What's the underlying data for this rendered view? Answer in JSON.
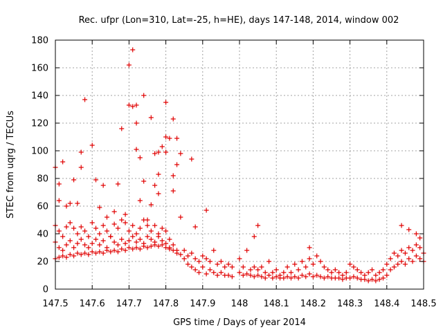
{
  "chart_data": {
    "type": "scatter",
    "title": "Rec. ufpr (Lon=310, Lat=-25, h=HE), days 147-148, 2014, window 002",
    "xlabel": "GPS time / Days of year 2014",
    "ylabel": "STEC from uqrg / TECUs",
    "xlim": [
      147.5,
      148.5
    ],
    "ylim": [
      0,
      180
    ],
    "xticks": [
      147.5,
      147.6,
      147.7,
      147.8,
      147.9,
      148,
      148.1,
      148.2,
      148.3,
      148.4,
      148.5
    ],
    "xtick_labels": [
      "147.5",
      "147.6",
      "147.7",
      "147.8",
      "147.9",
      "148",
      "148.1",
      "148.2",
      "148.3",
      "148.4",
      "148.5"
    ],
    "yticks": [
      0,
      20,
      40,
      60,
      80,
      100,
      120,
      140,
      160,
      180
    ],
    "ytick_labels": [
      "0",
      "20",
      "40",
      "60",
      "80",
      "100",
      "120",
      "140",
      "160",
      "180"
    ],
    "grid": true,
    "marker": "plus",
    "color": "#e00000",
    "series": [
      {
        "name": "",
        "points": [
          [
            147.5,
            88
          ],
          [
            147.51,
            76
          ],
          [
            147.51,
            64
          ],
          [
            147.52,
            92
          ],
          [
            147.53,
            60
          ],
          [
            147.54,
            62
          ],
          [
            147.55,
            79
          ],
          [
            147.56,
            62
          ],
          [
            147.57,
            99
          ],
          [
            147.57,
            88
          ],
          [
            147.58,
            137
          ],
          [
            147.6,
            104
          ],
          [
            147.61,
            79
          ],
          [
            147.62,
            59
          ],
          [
            147.63,
            75
          ],
          [
            147.64,
            52
          ],
          [
            147.66,
            56
          ],
          [
            147.67,
            76
          ],
          [
            147.68,
            116
          ],
          [
            147.69,
            54
          ],
          [
            147.7,
            162
          ],
          [
            147.7,
            133
          ],
          [
            147.71,
            173
          ],
          [
            147.71,
            132
          ],
          [
            147.72,
            133
          ],
          [
            147.72,
            120
          ],
          [
            147.72,
            101
          ],
          [
            147.73,
            95
          ],
          [
            147.73,
            64
          ],
          [
            147.74,
            140
          ],
          [
            147.74,
            78
          ],
          [
            147.75,
            50
          ],
          [
            147.76,
            124
          ],
          [
            147.76,
            61
          ],
          [
            147.77,
            98
          ],
          [
            147.77,
            75
          ],
          [
            147.78,
            99
          ],
          [
            147.78,
            83
          ],
          [
            147.78,
            69
          ],
          [
            147.79,
            103
          ],
          [
            147.8,
            135
          ],
          [
            147.8,
            110
          ],
          [
            147.8,
            99
          ],
          [
            147.81,
            109
          ],
          [
            147.82,
            123
          ],
          [
            147.82,
            82
          ],
          [
            147.82,
            71
          ],
          [
            147.83,
            90
          ],
          [
            147.83,
            109
          ],
          [
            147.84,
            98
          ],
          [
            147.84,
            52
          ],
          [
            147.87,
            94
          ],
          [
            147.88,
            45
          ],
          [
            147.91,
            57
          ],
          [
            148.05,
            46
          ],
          [
            148.04,
            38
          ],
          [
            148.19,
            30
          ],
          [
            148.44,
            46
          ],
          [
            148.46,
            43
          ],
          [
            148.48,
            40
          ],
          [
            148.49,
            37
          ],
          [
            147.5,
            46
          ],
          [
            147.51,
            42
          ],
          [
            147.52,
            38
          ],
          [
            147.53,
            45
          ],
          [
            147.54,
            48
          ],
          [
            147.55,
            44
          ],
          [
            147.56,
            40
          ],
          [
            147.57,
            45
          ],
          [
            147.58,
            42
          ],
          [
            147.59,
            38
          ],
          [
            147.6,
            48
          ],
          [
            147.61,
            44
          ],
          [
            147.62,
            40
          ],
          [
            147.63,
            46
          ],
          [
            147.64,
            42
          ],
          [
            147.65,
            38
          ],
          [
            147.66,
            47
          ],
          [
            147.67,
            44
          ],
          [
            147.68,
            50
          ],
          [
            147.69,
            48
          ],
          [
            147.7,
            42
          ],
          [
            147.71,
            46
          ],
          [
            147.72,
            40
          ],
          [
            147.73,
            44
          ],
          [
            147.74,
            50
          ],
          [
            147.75,
            46
          ],
          [
            147.76,
            42
          ],
          [
            147.77,
            46
          ],
          [
            147.78,
            40
          ],
          [
            147.79,
            44
          ],
          [
            147.8,
            42
          ],
          [
            147.81,
            36
          ],
          [
            147.5,
            34
          ],
          [
            147.51,
            30
          ],
          [
            147.52,
            28
          ],
          [
            147.53,
            32
          ],
          [
            147.54,
            35
          ],
          [
            147.55,
            30
          ],
          [
            147.56,
            33
          ],
          [
            147.57,
            36
          ],
          [
            147.58,
            32
          ],
          [
            147.59,
            30
          ],
          [
            147.6,
            33
          ],
          [
            147.61,
            36
          ],
          [
            147.62,
            32
          ],
          [
            147.63,
            35
          ],
          [
            147.64,
            30
          ],
          [
            147.65,
            38
          ],
          [
            147.66,
            34
          ],
          [
            147.67,
            32
          ],
          [
            147.68,
            36
          ],
          [
            147.69,
            33
          ],
          [
            147.7,
            35
          ],
          [
            147.71,
            38
          ],
          [
            147.72,
            34
          ],
          [
            147.73,
            36
          ],
          [
            147.74,
            33
          ],
          [
            147.75,
            38
          ],
          [
            147.76,
            36
          ],
          [
            147.77,
            34
          ],
          [
            147.78,
            38
          ],
          [
            147.79,
            35
          ],
          [
            147.8,
            33
          ],
          [
            147.81,
            30
          ],
          [
            147.82,
            32
          ],
          [
            147.83,
            28
          ],
          [
            147.5,
            22
          ],
          [
            147.51,
            23
          ],
          [
            147.52,
            24
          ],
          [
            147.53,
            23
          ],
          [
            147.54,
            25
          ],
          [
            147.55,
            24
          ],
          [
            147.56,
            26
          ],
          [
            147.57,
            25
          ],
          [
            147.58,
            26
          ],
          [
            147.59,
            25
          ],
          [
            147.6,
            27
          ],
          [
            147.61,
            26
          ],
          [
            147.62,
            27
          ],
          [
            147.63,
            26
          ],
          [
            147.64,
            28
          ],
          [
            147.65,
            27
          ],
          [
            147.66,
            28
          ],
          [
            147.67,
            27
          ],
          [
            147.68,
            29
          ],
          [
            147.69,
            28
          ],
          [
            147.7,
            30
          ],
          [
            147.71,
            29
          ],
          [
            147.72,
            30
          ],
          [
            147.73,
            29
          ],
          [
            147.74,
            31
          ],
          [
            147.75,
            30
          ],
          [
            147.76,
            31
          ],
          [
            147.77,
            32
          ],
          [
            147.78,
            31
          ],
          [
            147.79,
            32
          ],
          [
            147.8,
            30
          ],
          [
            147.81,
            29
          ],
          [
            147.82,
            28
          ],
          [
            147.83,
            26
          ],
          [
            147.84,
            25
          ],
          [
            147.85,
            28
          ],
          [
            147.85,
            22
          ],
          [
            147.86,
            24
          ],
          [
            147.86,
            18
          ],
          [
            147.87,
            26
          ],
          [
            147.87,
            16
          ],
          [
            147.88,
            22
          ],
          [
            147.88,
            14
          ],
          [
            147.89,
            20
          ],
          [
            147.89,
            12
          ],
          [
            147.9,
            24
          ],
          [
            147.9,
            16
          ],
          [
            147.91,
            22
          ],
          [
            147.91,
            11
          ],
          [
            147.92,
            20
          ],
          [
            147.92,
            14
          ],
          [
            147.93,
            28
          ],
          [
            147.93,
            12
          ],
          [
            147.94,
            18
          ],
          [
            147.94,
            10
          ],
          [
            147.95,
            20
          ],
          [
            147.95,
            12
          ],
          [
            147.96,
            16
          ],
          [
            147.96,
            10
          ],
          [
            147.97,
            18
          ],
          [
            147.97,
            10
          ],
          [
            147.98,
            16
          ],
          [
            147.98,
            9
          ],
          [
            148.0,
            22
          ],
          [
            148.0,
            12
          ],
          [
            148.01,
            16
          ],
          [
            148.01,
            10
          ],
          [
            148.02,
            28
          ],
          [
            148.02,
            11
          ],
          [
            148.03,
            14
          ],
          [
            148.03,
            10
          ],
          [
            148.04,
            16
          ],
          [
            148.04,
            9
          ],
          [
            148.05,
            14
          ],
          [
            148.05,
            10
          ],
          [
            148.06,
            16
          ],
          [
            148.06,
            9
          ],
          [
            148.07,
            12
          ],
          [
            148.07,
            8
          ],
          [
            148.08,
            20
          ],
          [
            148.08,
            10
          ],
          [
            148.09,
            12
          ],
          [
            148.09,
            8
          ],
          [
            148.1,
            14
          ],
          [
            148.1,
            9
          ],
          [
            148.11,
            10
          ],
          [
            148.11,
            8
          ],
          [
            148.12,
            12
          ],
          [
            148.12,
            8
          ],
          [
            148.13,
            16
          ],
          [
            148.13,
            9
          ],
          [
            148.14,
            12
          ],
          [
            148.14,
            8
          ],
          [
            148.15,
            18
          ],
          [
            148.15,
            9
          ],
          [
            148.16,
            14
          ],
          [
            148.16,
            8
          ],
          [
            148.17,
            20
          ],
          [
            148.17,
            10
          ],
          [
            148.18,
            16
          ],
          [
            148.18,
            9
          ],
          [
            148.19,
            22
          ],
          [
            148.19,
            11
          ],
          [
            148.2,
            18
          ],
          [
            148.2,
            9
          ],
          [
            148.21,
            24
          ],
          [
            148.21,
            10
          ],
          [
            148.22,
            20
          ],
          [
            148.22,
            9
          ],
          [
            148.23,
            16
          ],
          [
            148.23,
            8
          ],
          [
            148.24,
            14
          ],
          [
            148.24,
            9
          ],
          [
            148.25,
            12
          ],
          [
            148.25,
            8
          ],
          [
            148.26,
            14
          ],
          [
            148.26,
            8
          ],
          [
            148.27,
            12
          ],
          [
            148.27,
            8
          ],
          [
            148.28,
            10
          ],
          [
            148.28,
            7
          ],
          [
            148.29,
            12
          ],
          [
            148.29,
            8
          ],
          [
            148.3,
            18
          ],
          [
            148.3,
            8
          ],
          [
            148.31,
            16
          ],
          [
            148.31,
            9
          ],
          [
            148.32,
            14
          ],
          [
            148.32,
            8
          ],
          [
            148.33,
            12
          ],
          [
            148.33,
            7
          ],
          [
            148.34,
            10
          ],
          [
            148.34,
            7
          ],
          [
            148.35,
            12
          ],
          [
            148.35,
            6
          ],
          [
            148.36,
            14
          ],
          [
            148.36,
            7
          ],
          [
            148.37,
            10
          ],
          [
            148.37,
            6
          ],
          [
            148.38,
            12
          ],
          [
            148.38,
            7
          ],
          [
            148.39,
            14
          ],
          [
            148.39,
            8
          ],
          [
            148.4,
            18
          ],
          [
            148.4,
            10
          ],
          [
            148.41,
            22
          ],
          [
            148.41,
            14
          ],
          [
            148.42,
            26
          ],
          [
            148.42,
            16
          ],
          [
            148.43,
            24
          ],
          [
            148.43,
            18
          ],
          [
            148.44,
            28
          ],
          [
            148.44,
            20
          ],
          [
            148.45,
            26
          ],
          [
            148.45,
            18
          ],
          [
            148.46,
            30
          ],
          [
            148.46,
            22
          ],
          [
            148.47,
            28
          ],
          [
            148.47,
            20
          ],
          [
            148.48,
            32
          ],
          [
            148.48,
            24
          ],
          [
            148.49,
            30
          ],
          [
            148.49,
            22
          ],
          [
            148.5,
            26
          ],
          [
            148.5,
            20
          ]
        ]
      }
    ]
  }
}
